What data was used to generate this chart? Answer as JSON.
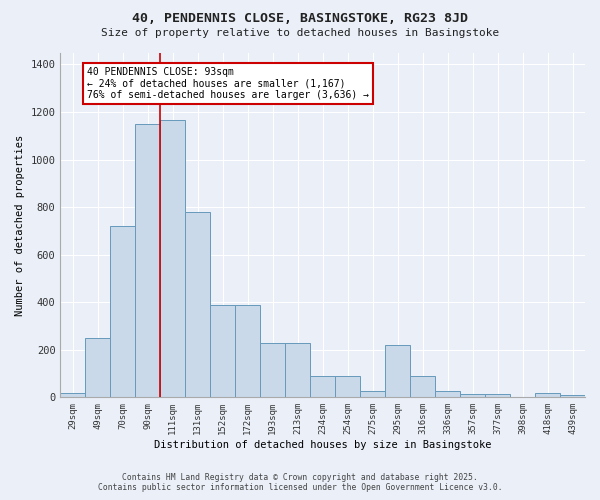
{
  "title1": "40, PENDENNIS CLOSE, BASINGSTOKE, RG23 8JD",
  "title2": "Size of property relative to detached houses in Basingstoke",
  "xlabel": "Distribution of detached houses by size in Basingstoke",
  "ylabel": "Number of detached properties",
  "categories": [
    "29sqm",
    "49sqm",
    "70sqm",
    "90sqm",
    "111sqm",
    "131sqm",
    "152sqm",
    "172sqm",
    "193sqm",
    "213sqm",
    "234sqm",
    "254sqm",
    "275sqm",
    "295sqm",
    "316sqm",
    "336sqm",
    "357sqm",
    "377sqm",
    "398sqm",
    "418sqm",
    "439sqm"
  ],
  "values": [
    20,
    248,
    720,
    1150,
    1165,
    780,
    390,
    390,
    228,
    228,
    90,
    90,
    28,
    220,
    90,
    28,
    15,
    15,
    0,
    20,
    10
  ],
  "bar_color": "#c9d9ea",
  "bar_edge_color": "#6699bb",
  "bg_color": "#eaeff8",
  "grid_color": "#d0d8e8",
  "annotation_text": "40 PENDENNIS CLOSE: 93sqm\n← 24% of detached houses are smaller (1,167)\n76% of semi-detached houses are larger (3,636) →",
  "red_line_x": 3.5,
  "annotation_box_color": "#ffffff",
  "annotation_box_edge": "#cc0000",
  "red_line_color": "#cc0000",
  "footnote1": "Contains HM Land Registry data © Crown copyright and database right 2025.",
  "footnote2": "Contains public sector information licensed under the Open Government Licence v3.0.",
  "ylim": [
    0,
    1450
  ],
  "yticks": [
    0,
    200,
    400,
    600,
    800,
    1000,
    1200,
    1400
  ]
}
